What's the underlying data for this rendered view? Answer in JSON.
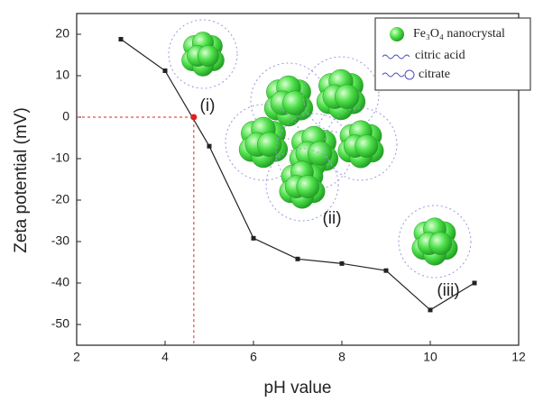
{
  "chart_data": {
    "type": "line",
    "x_label": "pH value",
    "y_label": "Zeta potential (mV)",
    "x": [
      3,
      4,
      5,
      6,
      7,
      8,
      9,
      10,
      11
    ],
    "series": [
      {
        "color": "#222222",
        "values": [
          18.8,
          11.2,
          -7,
          -29.2,
          -34.2,
          -35.3,
          -37,
          -46.5,
          -40
        ]
      }
    ],
    "highlight": {
      "x": 4.65,
      "y": 0,
      "color": "#e02020"
    },
    "xlim": [
      2,
      12
    ],
    "xticks": [
      2,
      4,
      6,
      8,
      10,
      12
    ],
    "ylim": [
      -55,
      25
    ],
    "yticks": [
      -50,
      -40,
      -30,
      -20,
      -10,
      0,
      10,
      20
    ],
    "annotations": [
      "(i)",
      "(ii)",
      "(iii)"
    ],
    "legend": [
      "Fe₃O₄ nanocrystal",
      "citric acid",
      "citrate"
    ]
  }
}
